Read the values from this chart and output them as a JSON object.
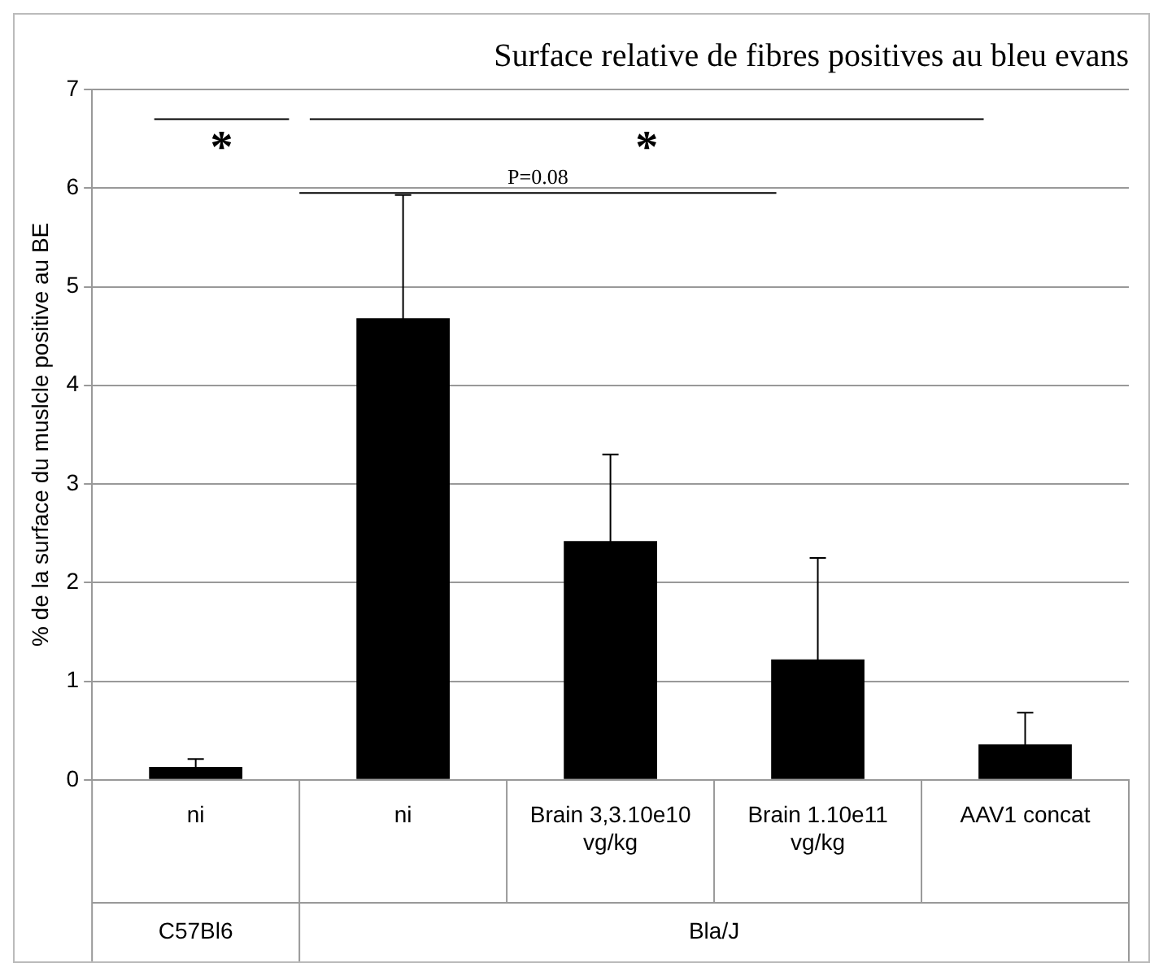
{
  "chart_data": {
    "type": "bar",
    "title": "Surface relative de fibres positives au bleu evans",
    "ylabel": "% de la surface du muslcle positive au BE",
    "categories": [
      "ni",
      "ni",
      "Brain 3,3.10e10 vg/kg",
      "Brain 1.10e11 vg/kg",
      "AAV1 concat"
    ],
    "values": [
      0.13,
      4.68,
      2.42,
      1.22,
      0.36
    ],
    "errors": [
      0.08,
      1.25,
      0.88,
      1.03,
      0.32
    ],
    "color": "#000000",
    "ylim": [
      0,
      7
    ],
    "yticks": [
      0,
      1,
      2,
      3,
      4,
      5,
      6,
      7
    ],
    "grid": "y",
    "legend": false,
    "annotations": [
      "*",
      "*",
      "P=0.08",
      "C57Bl6",
      "Bla/J"
    ]
  }
}
